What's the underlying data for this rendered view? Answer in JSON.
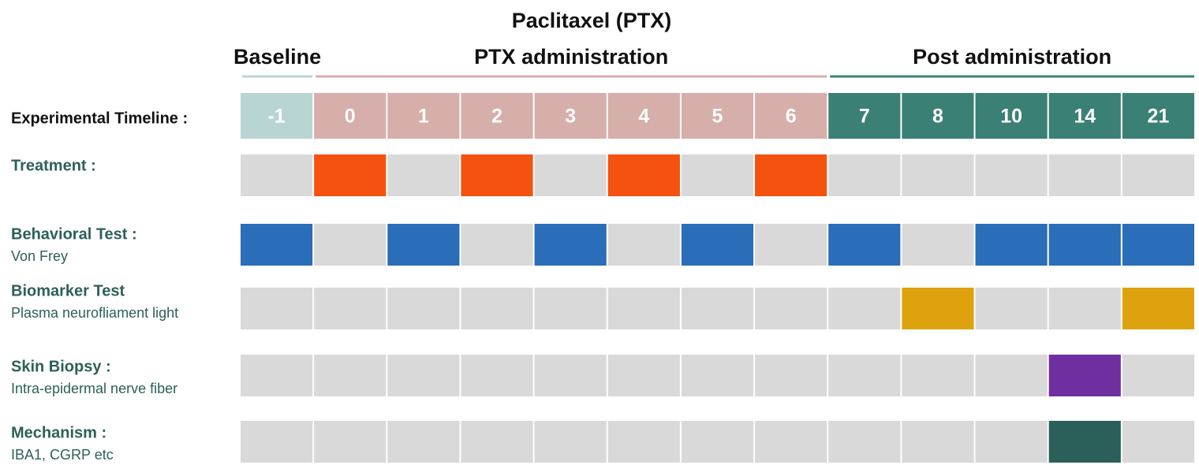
{
  "header": {
    "title": "Paclitaxel (PTX)"
  },
  "phases": [
    {
      "title": "Baseline",
      "color": "#b8d5d3",
      "line_color": "#b8d5d3",
      "days": [
        "-1"
      ]
    },
    {
      "title": "PTX administration",
      "color": "#d6aeaa",
      "line_color": "#d6aeaa",
      "days": [
        "0",
        "1",
        "2",
        "3",
        "4",
        "5",
        "6"
      ]
    },
    {
      "title": "Post administration",
      "color": "#3b8075",
      "line_color": "#3b8075",
      "days": [
        "7",
        "8",
        "10",
        "14",
        "21"
      ]
    }
  ],
  "timeline_label": "Experimental Timeline :",
  "inactive_color": "#d9d9d9",
  "rows": [
    {
      "label": "Treatment :",
      "color": "#f4520e",
      "active_days": [
        "0",
        "2",
        "4",
        "6"
      ]
    },
    {
      "label": "Behavioral Test :",
      "sublabel": "Von Frey",
      "color": "#2a6db8",
      "active_days": [
        "-1",
        "1",
        "3",
        "5",
        "7",
        "10",
        "14",
        "21"
      ]
    },
    {
      "label": "Biomarker Test",
      "sublabel": "Plasma neurofliament light",
      "color": "#dea20e",
      "active_days": [
        "8",
        "21"
      ]
    },
    {
      "label": "Skin Biopsy :",
      "sublabel": "Intra-epidermal nerve fiber",
      "color": "#6f2fa0",
      "active_days": [
        "14"
      ]
    },
    {
      "label": "Mechanism :",
      "sublabel": "IBA1, CGRP etc",
      "color": "#2a5f5a",
      "active_days": [
        "14"
      ]
    }
  ]
}
